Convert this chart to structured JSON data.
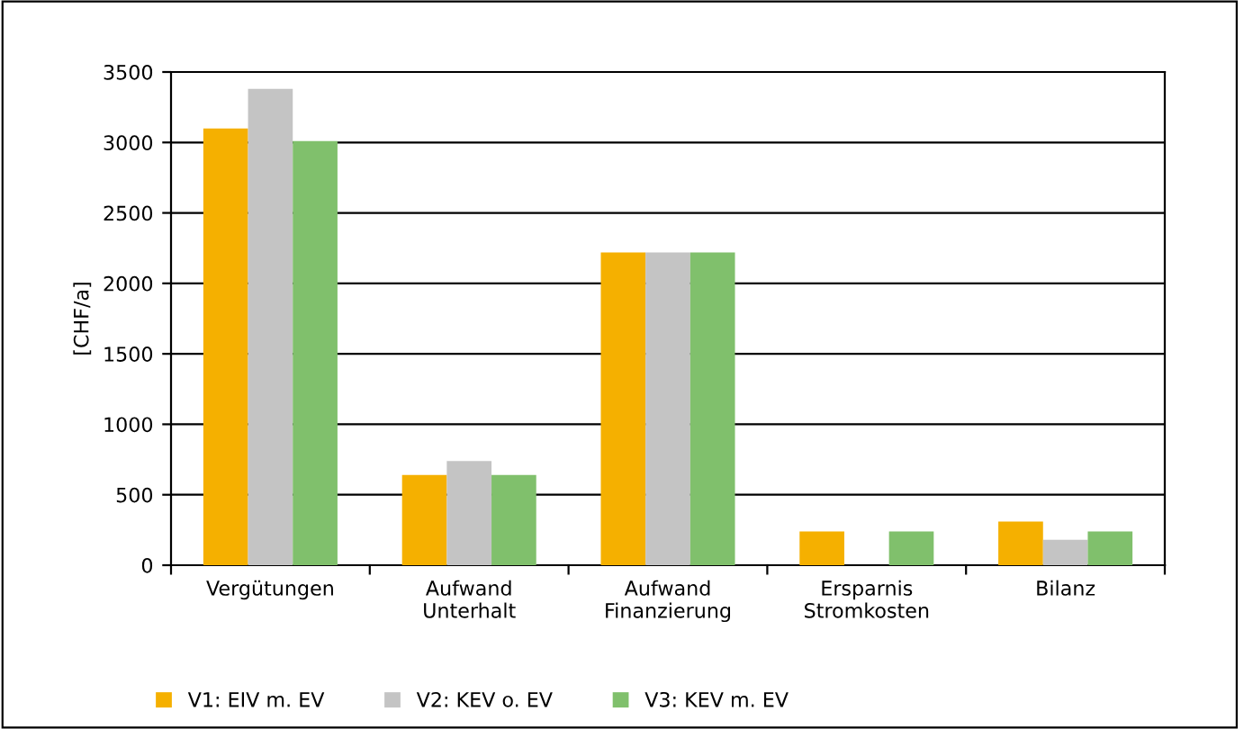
{
  "chart_data": {
    "type": "bar",
    "ylabel": "[CHF/a]",
    "categories": [
      "Vergütungen",
      "Aufwand\nUnterhalt",
      "Aufwand\nFinanzierung",
      "Ersparnis\nStromkosten",
      "Bilanz"
    ],
    "series": [
      {
        "name": "V1: EIV m. EV",
        "color": "#f5b000",
        "values": [
          3100,
          640,
          2220,
          240,
          310
        ]
      },
      {
        "name": "V2: KEV o. EV",
        "color": "#c4c4c4",
        "values": [
          3380,
          740,
          2220,
          0,
          180
        ]
      },
      {
        "name": "V3: KEV m. EV",
        "color": "#80c06c",
        "values": [
          3010,
          640,
          2220,
          240,
          240
        ]
      }
    ],
    "ylim": [
      0,
      3500
    ],
    "yticks": [
      0,
      500,
      1000,
      1500,
      2000,
      2500,
      3000,
      3500
    ],
    "grid": "y",
    "legend": "bottom left"
  }
}
